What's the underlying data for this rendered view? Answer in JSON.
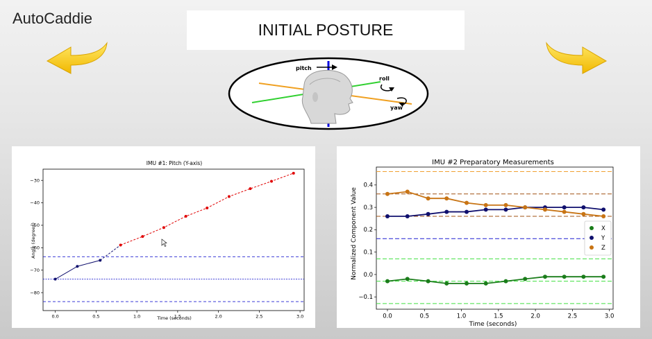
{
  "app": {
    "title": "AutoCaddie"
  },
  "header": {
    "title": "INITIAL POSTURE"
  },
  "diagram": {
    "labels": {
      "pitch": "pitch",
      "roll": "roll",
      "yaw": "yaw"
    }
  },
  "colors": {
    "arrow": "#f5c400",
    "pitch": "#e00000",
    "baseline": "#1f1fd0",
    "x": "#1a7d1a",
    "y": "#10106e",
    "z": "#c87414"
  },
  "chart_data": [
    {
      "type": "line",
      "title": "IMU #1: Pitch (Y-axis)",
      "xlabel": "Time (seconds)",
      "ylabel": "Angle (degrees)",
      "xlim": [
        -0.15,
        3.05
      ],
      "ylim": [
        -88,
        -25
      ],
      "xticks": [
        "0.0",
        "0.5",
        "1.0",
        "1.5",
        "2.0",
        "2.5",
        "3.0"
      ],
      "yticks": [
        "−30",
        "−40",
        "−50",
        "−60",
        "−70",
        "−80"
      ],
      "series": [
        {
          "x": [
            0.0,
            0.27,
            0.55
          ],
          "y": [
            -74,
            -68.3,
            -65.6
          ],
          "color": "#10106e"
        },
        {
          "x": [
            0.8,
            1.07,
            1.33,
            1.6,
            1.86,
            2.13,
            2.39,
            2.65,
            2.92
          ],
          "y": [
            -58.8,
            -55,
            -51,
            -46,
            -42.3,
            -37.2,
            -33.7,
            -30.4,
            -26.8
          ],
          "color": "#e00000"
        }
      ],
      "reference_lines": [
        -64,
        -74,
        -84
      ]
    },
    {
      "type": "line",
      "title": "IMU #2 Preparatory Measurements",
      "xlabel": "Time (seconds)",
      "ylabel": "Normalized Component Value",
      "xlim": [
        -0.15,
        3.05
      ],
      "ylim": [
        -0.155,
        0.48
      ],
      "xticks": [
        "0.0",
        "0.5",
        "1.0",
        "1.5",
        "2.0",
        "2.5",
        "3.0"
      ],
      "yticks": [
        "0.4",
        "0.3",
        "0.2",
        "0.1",
        "0.0",
        "−0.1"
      ],
      "legend": [
        "X",
        "Y",
        "Z"
      ],
      "x": [
        0.0,
        0.27,
        0.55,
        0.8,
        1.07,
        1.33,
        1.6,
        1.86,
        2.13,
        2.39,
        2.65,
        2.92
      ],
      "series": [
        {
          "name": "X",
          "values": [
            -0.03,
            -0.02,
            -0.03,
            -0.04,
            -0.04,
            -0.04,
            -0.03,
            -0.02,
            -0.01,
            -0.01,
            -0.01,
            -0.01
          ],
          "color": "#1a7d1a"
        },
        {
          "name": "Y",
          "values": [
            0.26,
            0.26,
            0.27,
            0.28,
            0.28,
            0.29,
            0.29,
            0.3,
            0.3,
            0.3,
            0.3,
            0.29
          ],
          "color": "#10106e"
        },
        {
          "name": "Z",
          "values": [
            0.36,
            0.37,
            0.34,
            0.34,
            0.32,
            0.31,
            0.31,
            0.3,
            0.29,
            0.28,
            0.27,
            0.26
          ],
          "color": "#c87414"
        }
      ],
      "reference_lines": [
        {
          "y": 0.46,
          "color": "#f0a030"
        },
        {
          "y": 0.36,
          "color": "#a05010"
        },
        {
          "y": 0.26,
          "color": "#a05010"
        },
        {
          "y": 0.16,
          "color": "#1f1fd0"
        },
        {
          "y": 0.07,
          "color": "#40e040"
        },
        {
          "y": -0.03,
          "color": "#40e040"
        },
        {
          "y": -0.13,
          "color": "#40e040"
        }
      ]
    }
  ]
}
